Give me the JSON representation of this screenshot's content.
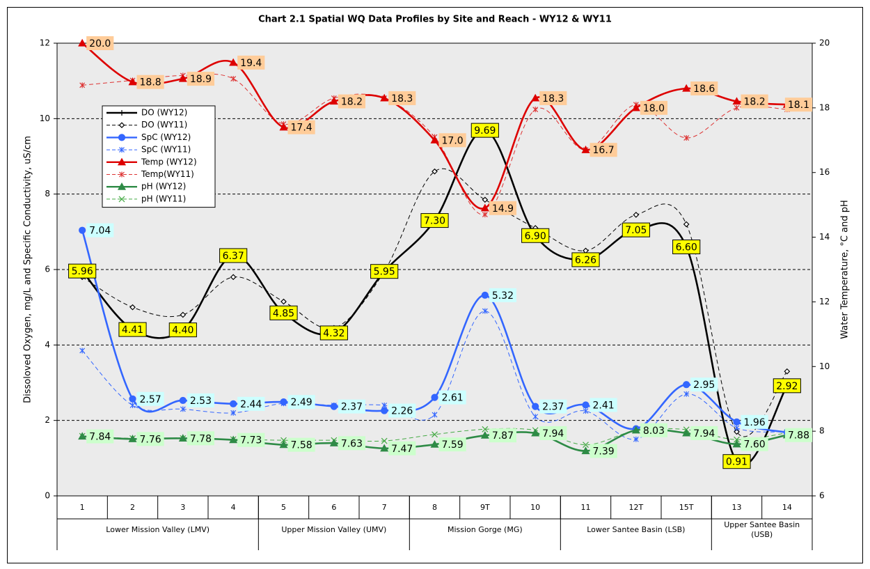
{
  "chart_data": {
    "type": "line",
    "title": "Chart 2.1 Spatial WQ Data Profiles by Site and Reach - WY12 & WY11",
    "y_label": "Dissoloved Oxygen, mg/L and Specific Conductivity, uS/cm",
    "y2_label": "Water Temperature, °C and pH",
    "categories": [
      "1",
      "2",
      "3",
      "4",
      "5",
      "6",
      "7",
      "8",
      "9T",
      "10",
      "11",
      "12T",
      "15T",
      "13",
      "14"
    ],
    "groups": [
      {
        "label": "Lower Mission Valley (LMV)",
        "size": 4
      },
      {
        "label": "Upper Mission Valley (UMV)",
        "size": 3
      },
      {
        "label": "Mission Gorge (MG)",
        "size": 3
      },
      {
        "label": "Lower Santee Basin (LSB)",
        "size": 3
      },
      {
        "label": "Upper Santee Basin (USB)",
        "size": 2
      }
    ],
    "ylim": [
      0,
      12
    ],
    "yticks": [
      0,
      2,
      4,
      6,
      8,
      10,
      12
    ],
    "y2lim": [
      6,
      20
    ],
    "y2ticks": [
      6,
      8,
      10,
      12,
      14,
      16,
      18,
      20
    ],
    "grid": true,
    "legend": "upper-left",
    "series": [
      {
        "name": "DO (WY12)",
        "color": "#000000",
        "marker": "plus",
        "dash": false,
        "label_color": "#ffff00",
        "label_place": "center",
        "values": [
          5.96,
          4.41,
          4.4,
          6.37,
          4.85,
          4.32,
          5.95,
          7.3,
          9.69,
          6.9,
          6.26,
          7.05,
          6.6,
          0.91,
          2.92
        ],
        "value_labels": [
          "5.96",
          "4.41",
          "4.40",
          "6.37",
          "4.85",
          "4.32",
          "5.95",
          "7.30",
          "9.69",
          "6.90",
          "6.26",
          "7.05",
          "6.60",
          "0.91",
          "2.92"
        ]
      },
      {
        "name": "DO (WY11)",
        "color": "#000000",
        "marker": "diamond",
        "dash": true,
        "values": [
          5.8,
          5.0,
          4.8,
          5.8,
          5.15,
          4.45,
          5.95,
          8.6,
          7.85,
          7.1,
          6.5,
          7.45,
          7.2,
          1.7,
          3.3
        ]
      },
      {
        "name": "SpC (WY12)",
        "color": "#3366ff",
        "marker": "circle",
        "dash": false,
        "label_color": "#ccffff",
        "label_place": "right",
        "values": [
          7.04,
          2.57,
          2.53,
          2.44,
          2.49,
          2.37,
          2.26,
          2.61,
          5.32,
          2.37,
          2.41,
          1.78,
          2.95,
          1.96,
          1.68
        ],
        "value_labels": [
          "7.04",
          "2.57",
          "2.53",
          "2.44",
          "2.49",
          "2.37",
          "2.26",
          "2.61",
          "5.32",
          "2.37",
          "2.41",
          null,
          "2.95",
          "1.96",
          null
        ]
      },
      {
        "name": "SpC (WY11)",
        "color": "#3366ff",
        "marker": "star",
        "dash": true,
        "values": [
          3.85,
          2.4,
          2.3,
          2.2,
          2.45,
          2.4,
          2.4,
          2.15,
          4.9,
          2.1,
          2.25,
          1.5,
          2.7,
          1.8,
          1.7
        ]
      },
      {
        "name": "Temp (WY12)",
        "color": "#dd0000",
        "marker": "triangle",
        "dash": false,
        "axis": "y2",
        "label_color": "#ffcc99",
        "label_place": "right",
        "values": [
          20.0,
          18.8,
          18.9,
          19.4,
          17.4,
          18.2,
          18.3,
          17.0,
          14.9,
          18.3,
          16.7,
          18.0,
          18.6,
          18.2,
          18.1
        ],
        "value_labels": [
          "20.0",
          "18.8",
          "18.9",
          "19.4",
          "17.4",
          "18.2",
          "18.3",
          "17.0",
          "14.9",
          "18.3",
          "16.7",
          "18.0",
          "18.6",
          "18.2",
          "18.1"
        ]
      },
      {
        "name": "Temp(WY11)",
        "color": "#dd3333",
        "marker": "star",
        "dash": true,
        "axis": "y2",
        "values": [
          18.7,
          18.85,
          19.0,
          18.9,
          17.5,
          18.3,
          18.3,
          17.1,
          14.7,
          17.95,
          16.7,
          18.1,
          17.07,
          18.0,
          17.95
        ]
      },
      {
        "name": "pH (WY12)",
        "color": "#2e8b46",
        "marker": "triangle",
        "dash": false,
        "axis": "y2",
        "label_color": "#ccffcc",
        "label_place": "right",
        "values": [
          7.84,
          7.76,
          7.78,
          7.73,
          7.58,
          7.63,
          7.47,
          7.59,
          7.87,
          7.94,
          7.39,
          8.03,
          7.94,
          7.6,
          7.88
        ],
        "value_labels": [
          "7.84",
          "7.76",
          "7.78",
          "7.73",
          "7.58",
          "7.63",
          "7.47",
          "7.59",
          "7.87",
          "7.94",
          "7.39",
          "8.03",
          "7.94",
          "7.60",
          "7.88"
        ]
      },
      {
        "name": "pH (WY11)",
        "color": "#44aa44",
        "marker": "x",
        "dash": true,
        "axis": "y2",
        "values": [
          7.85,
          7.78,
          7.78,
          7.75,
          7.72,
          7.72,
          7.7,
          7.9,
          8.06,
          8.03,
          7.58,
          8.02,
          8.05,
          7.74,
          7.95
        ]
      }
    ]
  }
}
